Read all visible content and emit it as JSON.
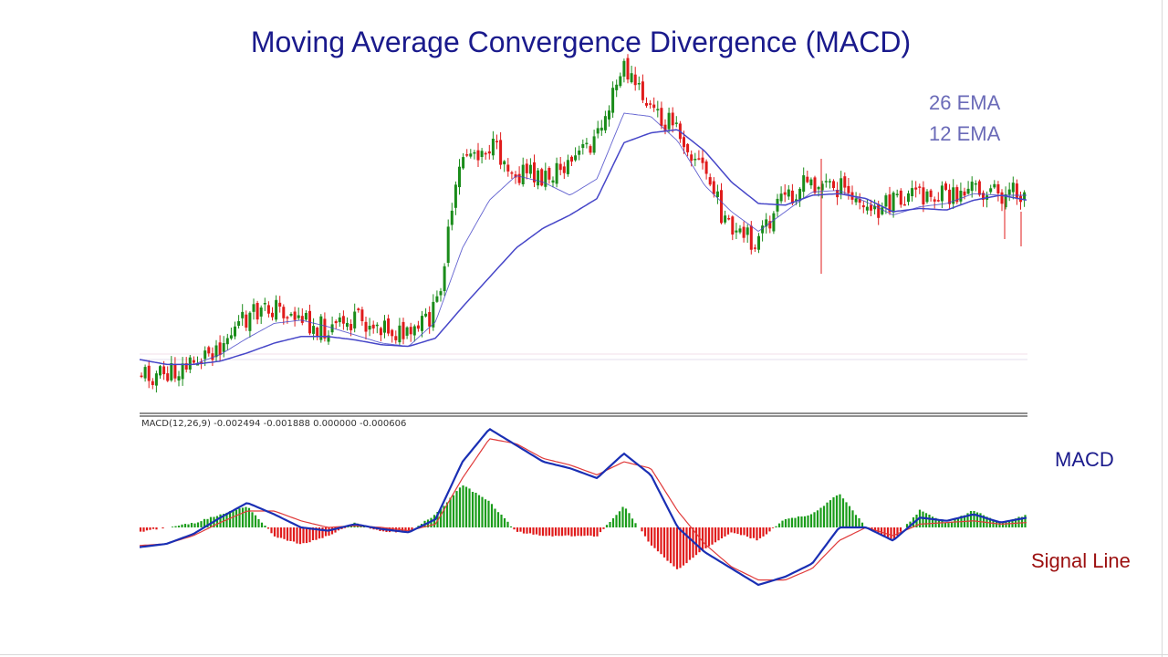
{
  "title": "Moving Average Convergence Divergence (MACD)",
  "labels": {
    "ema26": "26 EMA",
    "ema12": "12 EMA",
    "macd": "MACD",
    "signal": "Signal Line",
    "indicator_info": "MACD(12,26,9) -0.002494 -0.001888 0.000000 -0.000606"
  },
  "colors": {
    "title": "#1a1a8c",
    "bull_candle": "#1a8c1a",
    "bear_candle": "#e01b1b",
    "ema26": "#4646c8",
    "ema12": "#4646c8",
    "macd_line": "#1a2fb4",
    "signal_line": "#e03a3a",
    "hist_positive": "#1a9c1a",
    "hist_negative": "#e01b1b",
    "macd_label": "#1a1a8c",
    "signal_label": "#9c1010"
  },
  "chart_data": [
    {
      "type": "candlestick",
      "series": [
        {
          "name": "26 EMA",
          "values": [
            20,
            17,
            17,
            19,
            24,
            30,
            34,
            34,
            32,
            29,
            28,
            33,
            52,
            70,
            88,
            100,
            108,
            118,
            152,
            158,
            160,
            147,
            128,
            115,
            114,
            120,
            121,
            118,
            110,
            112,
            111,
            117,
            120,
            117
          ]
        },
        {
          "name": "12 EMA",
          "values": [
            20,
            17,
            17,
            23,
            33,
            42,
            44,
            40,
            35,
            30,
            28,
            43,
            88,
            117,
            132,
            128,
            120,
            130,
            170,
            168,
            153,
            126,
            110,
            98,
            110,
            122,
            123,
            116,
            108,
            113,
            115,
            121,
            120,
            120
          ]
        },
        {
          "name": "price",
          "values": [
            12,
            10,
            18,
            30,
            45,
            52,
            45,
            38,
            43,
            42,
            32,
            50,
            145,
            150,
            135,
            130,
            140,
            155,
            198,
            172,
            160,
            135,
            95,
            92,
            120,
            128,
            125,
            110,
            115,
            122,
            118,
            125,
            120,
            122
          ]
        }
      ]
    },
    {
      "type": "bar",
      "series": [
        {
          "name": "MACD",
          "values": [
            -1.2,
            -1.0,
            -0.4,
            0.6,
            1.5,
            0.8,
            0.0,
            -0.2,
            0.2,
            -0.1,
            -0.3,
            0.5,
            4.0,
            6.0,
            5.0,
            4.0,
            3.6,
            3.0,
            4.5,
            3.2,
            0.0,
            -1.5,
            -2.5,
            -3.5,
            -3.0,
            -2.2,
            0.0,
            0.0,
            -0.8,
            0.6,
            0.4,
            0.8,
            0.3,
            0.6
          ]
        },
        {
          "name": "Signal Line",
          "values": [
            -1.1,
            -1.0,
            -0.5,
            0.3,
            1.0,
            1.0,
            0.4,
            0.0,
            0.1,
            0.0,
            -0.2,
            0.2,
            3.0,
            5.4,
            5.1,
            4.2,
            3.8,
            3.2,
            4.0,
            3.6,
            1.0,
            -1.0,
            -2.4,
            -3.2,
            -3.2,
            -2.5,
            -0.8,
            0.0,
            -0.5,
            0.2,
            0.3,
            0.4,
            0.2,
            0.3
          ]
        }
      ]
    }
  ]
}
